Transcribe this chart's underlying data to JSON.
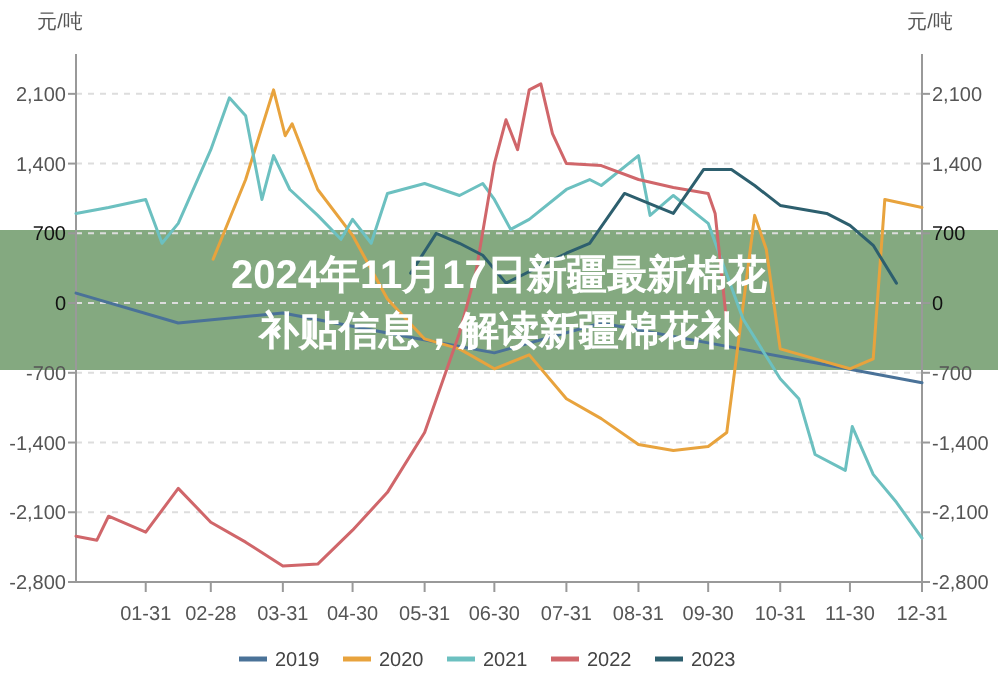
{
  "chart_data": {
    "type": "line",
    "title": "2024年11月17日新疆最新棉花补贴信息，解读新疆棉花补",
    "ylabel": "元/吨",
    "y2label": "元/吨",
    "xlim": [
      "--01-01",
      "--12-31"
    ],
    "xticks": [
      {
        "value": "--01-31",
        "label": "01-31"
      },
      {
        "value": "--02-28",
        "label": "02-28"
      },
      {
        "value": "--03-31",
        "label": "03-31"
      },
      {
        "value": "--04-30",
        "label": "04-30"
      },
      {
        "value": "--05-31",
        "label": "05-31"
      },
      {
        "value": "--06-30",
        "label": "06-30"
      },
      {
        "value": "--07-31",
        "label": "07-31"
      },
      {
        "value": "--08-31",
        "label": "08-31"
      },
      {
        "value": "--09-30",
        "label": "09-30"
      },
      {
        "value": "--10-31",
        "label": "10-31"
      },
      {
        "value": "--11-30",
        "label": "11-30"
      },
      {
        "value": "--12-31",
        "label": "12-31"
      }
    ],
    "ylim": [
      -2800,
      2500
    ],
    "yticks": [
      {
        "value": -2800,
        "label": "-2,800"
      },
      {
        "value": -2100,
        "label": "-2,100"
      },
      {
        "value": -1400,
        "label": "-1,400"
      },
      {
        "value": -700,
        "label": "-700"
      },
      0,
      {
        "value": 700,
        "label": "700"
      },
      {
        "value": 1400,
        "label": "1,400"
      },
      {
        "value": 2100,
        "label": "2,100"
      }
    ],
    "y2lim": [
      -2800,
      2500
    ],
    "y2ticks": [
      {
        "value": -2800,
        "label": "-2,800"
      },
      {
        "value": -2100,
        "label": "-2,100"
      },
      {
        "value": -1400,
        "label": "-1,400"
      },
      {
        "value": -700,
        "label": "-700"
      },
      0,
      {
        "value": 700,
        "label": "700"
      },
      {
        "value": 1400,
        "label": "1,400"
      },
      {
        "value": 2100,
        "label": "2,100"
      }
    ],
    "grid": "y",
    "legend": "bottom",
    "marker": "none",
    "line_style": "solid",
    "series": [
      {
        "name": "2019",
        "color": "#4a7298",
        "x": [
          "--01-01",
          "--02-14",
          "--03-31",
          "--05-15",
          "--06-30",
          "--08-15",
          "--09-30",
          "--11-15",
          "--12-31"
        ],
        "values": [
          100,
          -200,
          -100,
          -300,
          -500,
          -200,
          -400,
          -600,
          -800
        ]
      },
      {
        "name": "2020",
        "color": "#e8a33d",
        "x": [
          "--03-01",
          "--03-15",
          "--03-27",
          "--04-01",
          "--04-04",
          "--04-15",
          "--04-30",
          "--05-15",
          "--05-31",
          "--06-15",
          "--06-30",
          "--07-15",
          "--07-31",
          "--08-15",
          "--08-31",
          "--09-15",
          "--09-30",
          "--10-08",
          "--10-20",
          "--10-25",
          "--10-31",
          "--11-15",
          "--11-30",
          "--12-10",
          "--12-15",
          "--12-31"
        ],
        "values": [
          440,
          1240,
          2140,
          1680,
          1800,
          1140,
          680,
          40,
          -360,
          -460,
          -660,
          -520,
          -960,
          -1160,
          -1420,
          -1480,
          -1440,
          -1300,
          880,
          540,
          -460,
          -560,
          -660,
          -560,
          1040,
          960
        ]
      },
      {
        "name": "2021",
        "color": "#6cc0c0",
        "x": [
          "--01-01",
          "--01-15",
          "--01-31",
          "--02-07",
          "--02-14",
          "--02-28",
          "--03-08",
          "--03-15",
          "--03-22",
          "--03-27",
          "--04-03",
          "--04-15",
          "--04-25",
          "--04-30",
          "--05-08",
          "--05-15",
          "--05-31",
          "--06-15",
          "--06-25",
          "--06-30",
          "--07-07",
          "--07-15",
          "--07-31",
          "--08-10",
          "--08-15",
          "--08-31",
          "--09-05",
          "--09-15",
          "--09-30",
          "--10-15",
          "--10-31",
          "--11-08",
          "--11-15",
          "--11-28",
          "--12-01",
          "--12-10",
          "--12-20",
          "--12-31"
        ],
        "values": [
          900,
          960,
          1040,
          600,
          800,
          1540,
          2060,
          1880,
          1040,
          1480,
          1140,
          880,
          640,
          840,
          600,
          1100,
          1200,
          1080,
          1200,
          1040,
          740,
          840,
          1140,
          1240,
          1180,
          1480,
          880,
          1080,
          800,
          -160,
          -760,
          -960,
          -1520,
          -1680,
          -1240,
          -1720,
          -2000,
          -2360
        ]
      },
      {
        "name": "2022",
        "color": "#d0666a",
        "x": [
          "--01-01",
          "--01-10",
          "--01-15",
          "--01-31",
          "--02-14",
          "--02-28",
          "--03-15",
          "--03-31",
          "--04-15",
          "--04-30",
          "--05-15",
          "--05-31",
          "--06-15",
          "--06-22",
          "--06-30",
          "--07-05",
          "--07-10",
          "--07-15",
          "--07-20",
          "--07-25",
          "--07-31",
          "--08-15",
          "--08-31",
          "--09-15",
          "--09-30",
          "--10-03",
          "--10-08"
        ],
        "values": [
          -2340,
          -2380,
          -2140,
          -2300,
          -1860,
          -2200,
          -2400,
          -2640,
          -2620,
          -2280,
          -1900,
          -1300,
          -300,
          300,
          1400,
          1840,
          1540,
          2140,
          2200,
          1700,
          1400,
          1380,
          1240,
          1160,
          1100,
          900,
          -200
        ]
      },
      {
        "name": "2023",
        "color": "#2d5f6e",
        "x": [
          "--05-25",
          "--06-05",
          "--06-15",
          "--06-25",
          "--07-05",
          "--07-31",
          "--08-10",
          "--08-25",
          "--09-15",
          "--09-28",
          "--10-10",
          "--10-20",
          "--10-31",
          "--11-20",
          "--11-30",
          "--12-10",
          "--12-20"
        ],
        "values": [
          300,
          700,
          600,
          480,
          200,
          500,
          600,
          1100,
          900,
          1340,
          1340,
          1180,
          980,
          900,
          780,
          580,
          200
        ]
      }
    ]
  }
}
